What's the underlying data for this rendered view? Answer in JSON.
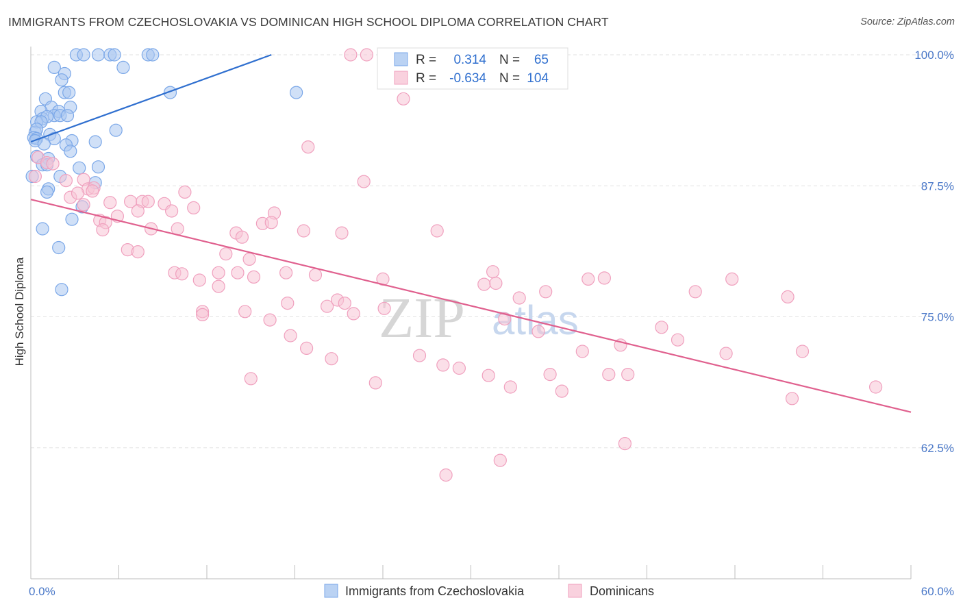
{
  "title": "IMMIGRANTS FROM CZECHOSLOVAKIA VS DOMINICAN HIGH SCHOOL DIPLOMA CORRELATION CHART",
  "source": "Source: ZipAtlas.com",
  "watermark": {
    "zip": "ZIP",
    "atlas": "atlas"
  },
  "chart_data": {
    "type": "scatter",
    "ylabel": "High School Diploma",
    "xlim": [
      0,
      60
    ],
    "ylim": [
      50,
      100
    ],
    "x_tick_labels": [
      "0.0%",
      "60.0%"
    ],
    "y_ticks": [
      62.5,
      75.0,
      87.5,
      100.0
    ],
    "y_tick_labels": [
      "62.5%",
      "75.0%",
      "87.5%",
      "100.0%"
    ],
    "grid": true,
    "legend_position": "bottom-center",
    "stats_box": {
      "rows": [
        {
          "r_label": "R =",
          "r_value": "0.314",
          "n_label": "N =",
          "n_value": "65"
        },
        {
          "r_label": "R =",
          "r_value": "-0.634",
          "n_label": "N =",
          "n_value": "104"
        }
      ]
    },
    "series": [
      {
        "name": "Immigrants from Czechoslovakia",
        "color": "#7aa7e8",
        "fill": "#a9c7f0",
        "line_color": "#2f6fcf",
        "trend": {
          "x": [
            0.0,
            16.4
          ],
          "y": [
            91.7,
            100.0
          ]
        },
        "points": [
          [
            3.1,
            100
          ],
          [
            3.6,
            100
          ],
          [
            4.6,
            100
          ],
          [
            5.4,
            100
          ],
          [
            5.7,
            100
          ],
          [
            8.0,
            100
          ],
          [
            8.3,
            100
          ],
          [
            1.6,
            98.8
          ],
          [
            6.3,
            98.8
          ],
          [
            2.3,
            98.2
          ],
          [
            2.1,
            97.6
          ],
          [
            2.3,
            96.4
          ],
          [
            2.6,
            96.4
          ],
          [
            9.5,
            96.4
          ],
          [
            18.1,
            96.4
          ],
          [
            1.0,
            95.8
          ],
          [
            1.4,
            95.0
          ],
          [
            2.7,
            95.0
          ],
          [
            0.7,
            94.6
          ],
          [
            1.9,
            94.6
          ],
          [
            1.6,
            94.2
          ],
          [
            2.0,
            94.2
          ],
          [
            0.8,
            93.9
          ],
          [
            1.1,
            94.1
          ],
          [
            2.5,
            94.2
          ],
          [
            0.4,
            93.6
          ],
          [
            0.7,
            93.6
          ],
          [
            0.3,
            92.6
          ],
          [
            0.4,
            92.9
          ],
          [
            5.8,
            92.8
          ],
          [
            1.3,
            92.4
          ],
          [
            0.2,
            92.1
          ],
          [
            0.4,
            92.0
          ],
          [
            0.3,
            91.8
          ],
          [
            1.6,
            92.0
          ],
          [
            2.8,
            91.8
          ],
          [
            4.4,
            91.7
          ],
          [
            0.9,
            91.5
          ],
          [
            2.4,
            91.4
          ],
          [
            2.7,
            90.8
          ],
          [
            0.4,
            90.3
          ],
          [
            1.2,
            90.1
          ],
          [
            0.8,
            89.5
          ],
          [
            1.1,
            89.5
          ],
          [
            3.3,
            89.2
          ],
          [
            4.6,
            89.3
          ],
          [
            0.1,
            88.4
          ],
          [
            2.0,
            88.4
          ],
          [
            4.4,
            87.8
          ],
          [
            1.2,
            87.2
          ],
          [
            1.1,
            86.9
          ],
          [
            3.5,
            85.5
          ],
          [
            2.8,
            84.3
          ],
          [
            0.8,
            83.4
          ],
          [
            1.9,
            81.6
          ],
          [
            2.1,
            77.6
          ]
        ]
      },
      {
        "name": "Dominicans",
        "color": "#f0a0be",
        "fill": "#f8c5d6",
        "line_color": "#e0608e",
        "trend": {
          "x": [
            0.0,
            60.0
          ],
          "y": [
            86.2,
            65.9
          ]
        },
        "points": [
          [
            21.8,
            100
          ],
          [
            22.9,
            100
          ],
          [
            25.4,
            95.8
          ],
          [
            18.9,
            91.2
          ],
          [
            0.5,
            90.2
          ],
          [
            1.1,
            89.7
          ],
          [
            1.5,
            89.6
          ],
          [
            0.3,
            88.4
          ],
          [
            2.4,
            88.0
          ],
          [
            3.6,
            88.1
          ],
          [
            22.7,
            87.9
          ],
          [
            3.9,
            87.2
          ],
          [
            4.3,
            87.3
          ],
          [
            10.5,
            86.9
          ],
          [
            4.2,
            87.0
          ],
          [
            2.7,
            86.4
          ],
          [
            3.2,
            86.8
          ],
          [
            5.4,
            85.9
          ],
          [
            6.8,
            86.0
          ],
          [
            7.6,
            86.0
          ],
          [
            8.0,
            86.0
          ],
          [
            9.1,
            85.8
          ],
          [
            11.1,
            85.4
          ],
          [
            7.3,
            85.1
          ],
          [
            9.6,
            85.1
          ],
          [
            16.6,
            84.9
          ],
          [
            3.6,
            85.7
          ],
          [
            5.9,
            84.6
          ],
          [
            4.7,
            84.2
          ],
          [
            5.1,
            84.0
          ],
          [
            15.8,
            83.9
          ],
          [
            16.4,
            84.0
          ],
          [
            8.2,
            83.4
          ],
          [
            10.0,
            83.4
          ],
          [
            4.9,
            83.3
          ],
          [
            18.6,
            83.2
          ],
          [
            21.2,
            83.0
          ],
          [
            27.7,
            83.2
          ],
          [
            14.0,
            83.0
          ],
          [
            14.4,
            82.6
          ],
          [
            6.6,
            81.4
          ],
          [
            7.3,
            81.2
          ],
          [
            13.3,
            81.0
          ],
          [
            14.9,
            80.5
          ],
          [
            9.8,
            79.2
          ],
          [
            10.3,
            79.1
          ],
          [
            12.8,
            79.2
          ],
          [
            14.1,
            79.2
          ],
          [
            17.4,
            79.2
          ],
          [
            19.4,
            79.0
          ],
          [
            31.5,
            79.3
          ],
          [
            11.5,
            78.5
          ],
          [
            12.8,
            77.9
          ],
          [
            15.2,
            78.8
          ],
          [
            24.0,
            78.6
          ],
          [
            30.9,
            78.1
          ],
          [
            31.7,
            78.2
          ],
          [
            38.0,
            78.6
          ],
          [
            39.1,
            78.7
          ],
          [
            47.8,
            78.6
          ],
          [
            35.1,
            77.4
          ],
          [
            45.3,
            77.4
          ],
          [
            51.6,
            76.9
          ],
          [
            17.5,
            76.3
          ],
          [
            20.2,
            76.0
          ],
          [
            20.9,
            76.6
          ],
          [
            21.4,
            76.3
          ],
          [
            24.1,
            75.8
          ],
          [
            33.3,
            76.8
          ],
          [
            11.7,
            75.5
          ],
          [
            11.7,
            75.2
          ],
          [
            14.6,
            75.5
          ],
          [
            22.0,
            75.3
          ],
          [
            16.3,
            74.7
          ],
          [
            32.3,
            74.8
          ],
          [
            43.0,
            74.0
          ],
          [
            34.6,
            73.6
          ],
          [
            17.7,
            73.2
          ],
          [
            44.1,
            72.8
          ],
          [
            40.2,
            72.3
          ],
          [
            18.8,
            72.0
          ],
          [
            26.5,
            71.3
          ],
          [
            20.5,
            71.0
          ],
          [
            37.6,
            71.7
          ],
          [
            47.4,
            71.5
          ],
          [
            52.6,
            71.7
          ],
          [
            28.1,
            70.4
          ],
          [
            29.2,
            70.1
          ],
          [
            35.4,
            69.5
          ],
          [
            15.0,
            69.1
          ],
          [
            31.2,
            69.4
          ],
          [
            40.7,
            69.5
          ],
          [
            39.4,
            69.5
          ],
          [
            23.5,
            68.7
          ],
          [
            32.7,
            68.3
          ],
          [
            57.6,
            68.3
          ],
          [
            36.2,
            67.9
          ],
          [
            51.9,
            67.2
          ],
          [
            40.5,
            62.9
          ],
          [
            32.0,
            61.3
          ],
          [
            28.3,
            59.9
          ]
        ]
      }
    ]
  }
}
